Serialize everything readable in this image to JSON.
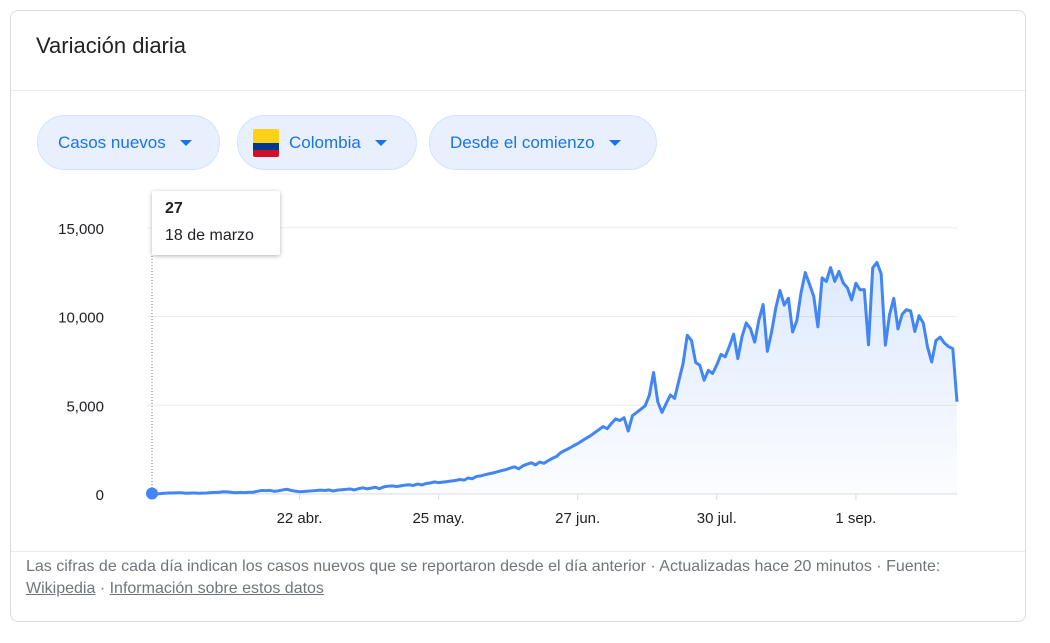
{
  "card": {
    "title": "Variación diaria"
  },
  "filters": {
    "metric": "Casos nuevos",
    "country": "Colombia",
    "range": "Desde el comienzo"
  },
  "tooltip": {
    "value": "27",
    "date": "18 de marzo"
  },
  "footer": {
    "text": "Las cifras de cada día indican los casos nuevos que se reportaron desde el día anterior · Actualizadas hace 20 minutos",
    "source_prefix": "·  Fuente:",
    "source_link": "Wikipedia",
    "separator": "·",
    "about_link": "Información sobre estos datos"
  },
  "colors": {
    "line": "#4285f4",
    "chip_bg": "#e8f0fe",
    "chip_text": "#1a73e8"
  },
  "chart_data": {
    "type": "area",
    "title": "",
    "xlabel": "",
    "ylabel": "",
    "ylim": [
      0,
      15500
    ],
    "yticks": [
      0,
      5000,
      10000,
      15000
    ],
    "ytick_labels": [
      "0",
      "5,000",
      "10,000",
      "15,000"
    ],
    "xticks": [
      {
        "day": 35,
        "label": "22 abr."
      },
      {
        "day": 68,
        "label": "25 may."
      },
      {
        "day": 101,
        "label": "27 jun."
      },
      {
        "day": 134,
        "label": "30 jul."
      },
      {
        "day": 167,
        "label": "1 sep."
      }
    ],
    "highlight": {
      "day": 0,
      "value": 27
    },
    "series": [
      {
        "start_date": "2020-03-18",
        "values": [
          27,
          10,
          20,
          40,
          60,
          60,
          70,
          70,
          40,
          50,
          60,
          40,
          50,
          60,
          80,
          90,
          100,
          130,
          120,
          90,
          70,
          90,
          80,
          100,
          100,
          150,
          200,
          190,
          200,
          150,
          180,
          230,
          270,
          200,
          160,
          130,
          140,
          160,
          180,
          200,
          220,
          200,
          230,
          170,
          220,
          240,
          260,
          280,
          230,
          300,
          350,
          290,
          330,
          380,
          300,
          400,
          440,
          460,
          420,
          460,
          500,
          520,
          480,
          560,
          510,
          590,
          620,
          680,
          640,
          670,
          700,
          730,
          760,
          820,
          780,
          900,
          860,
          990,
          1020,
          1090,
          1140,
          1190,
          1260,
          1320,
          1380,
          1460,
          1530,
          1420,
          1590,
          1680,
          1760,
          1640,
          1800,
          1730,
          1880,
          2010,
          2120,
          2340,
          2460,
          2580,
          2720,
          2840,
          2990,
          3140,
          3280,
          3450,
          3620,
          3800,
          3680,
          3980,
          4230,
          4140,
          4300,
          3550,
          4420,
          4600,
          4780,
          4970,
          5560,
          6850,
          5200,
          4600,
          5100,
          5580,
          5390,
          6380,
          7350,
          8950,
          8650,
          7410,
          7250,
          6410,
          6970,
          6790,
          7270,
          7870,
          7730,
          8330,
          9010,
          7630,
          8880,
          9640,
          9320,
          8560,
          9810,
          10680,
          8040,
          9120,
          10480,
          11470,
          10650,
          11030,
          9130,
          9770,
          11350,
          12480,
          11820,
          11150,
          9420,
          12180,
          11980,
          12760,
          11980,
          12550,
          11900,
          11620,
          10940,
          11880,
          11510,
          11520,
          8410,
          12740,
          13050,
          12420,
          8390,
          10120,
          11030,
          9300,
          10140,
          10390,
          10320,
          9160,
          10050,
          9640,
          8290,
          7440,
          8650,
          8840,
          8510,
          8310,
          8190,
          5200
        ]
      }
    ]
  }
}
